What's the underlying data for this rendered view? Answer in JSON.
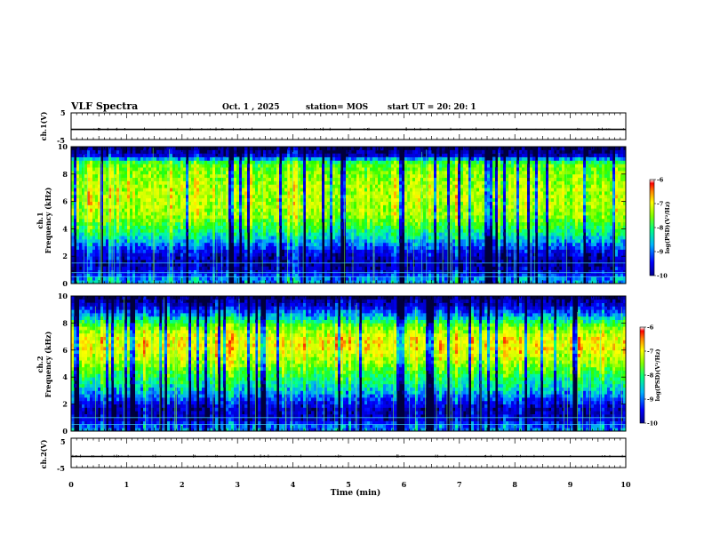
{
  "header": {
    "title": "VLF Spectra",
    "date": "Oct. 1 , 2025",
    "station": "station= MOS",
    "start_ut": "start  UT  =   20: 20: 1"
  },
  "chart_data": [
    {
      "type": "line",
      "name": "ch1-waveform",
      "ylabel": "ch.1(V)",
      "ylim": [
        -5,
        5
      ],
      "y_ticks": [
        "5",
        "-5"
      ],
      "baseline_value": -1.2,
      "xlim": [
        0,
        10
      ]
    },
    {
      "type": "heatmap",
      "name": "ch1-spectrogram",
      "ylabel_lines": [
        "ch.1",
        "Frequency (kHz)"
      ],
      "ylim": [
        0,
        10
      ],
      "y_ticks": [
        "0",
        "2",
        "4",
        "6",
        "8",
        "10"
      ],
      "xlim": [
        0,
        10
      ],
      "colorbar": {
        "label": "log(PSD)(V²/Hz)",
        "range": [
          -10,
          -6
        ],
        "ticks": [
          "-6",
          "-7",
          "-8",
          "-9",
          "-10"
        ]
      },
      "profile": [
        {
          "f": 0.3,
          "v": -8.6
        },
        {
          "f": 0.9,
          "v": -9.4
        },
        {
          "f": 1.6,
          "v": -9.6
        },
        {
          "f": 2.4,
          "v": -9.2
        },
        {
          "f": 3.2,
          "v": -8.5
        },
        {
          "f": 4.0,
          "v": -7.9
        },
        {
          "f": 5.0,
          "v": -7.3
        },
        {
          "f": 6.0,
          "v": -7.2
        },
        {
          "f": 7.0,
          "v": -7.2
        },
        {
          "f": 8.0,
          "v": -7.4
        },
        {
          "f": 8.8,
          "v": -7.6
        },
        {
          "f": 9.4,
          "v": -9.5
        },
        {
          "f": 10.0,
          "v": -10.0
        }
      ],
      "lines_khz": [
        0.5,
        0.8,
        1.5
      ]
    },
    {
      "type": "heatmap",
      "name": "ch2-spectrogram",
      "ylabel_lines": [
        "ch.2",
        "Frequency (kHz)"
      ],
      "ylim": [
        0,
        10
      ],
      "y_ticks": [
        "0",
        "2",
        "4",
        "6",
        "8",
        "10"
      ],
      "xlim": [
        0,
        10
      ],
      "colorbar": {
        "label": "log(PSD)(V²/Hz)",
        "range": [
          -10,
          -6
        ],
        "ticks": [
          "-6",
          "-7",
          "-8",
          "-9",
          "-10"
        ]
      },
      "profile": [
        {
          "f": 0.3,
          "v": -8.8
        },
        {
          "f": 0.9,
          "v": -9.5
        },
        {
          "f": 1.6,
          "v": -9.6
        },
        {
          "f": 2.4,
          "v": -9.0
        },
        {
          "f": 3.2,
          "v": -8.4
        },
        {
          "f": 4.2,
          "v": -7.9
        },
        {
          "f": 5.2,
          "v": -7.3
        },
        {
          "f": 6.2,
          "v": -6.9
        },
        {
          "f": 7.0,
          "v": -7.0
        },
        {
          "f": 7.8,
          "v": -7.6
        },
        {
          "f": 8.6,
          "v": -8.7
        },
        {
          "f": 9.4,
          "v": -9.5
        },
        {
          "f": 10.0,
          "v": -10.0
        }
      ],
      "lines_khz": [
        0.5,
        1.0
      ]
    },
    {
      "type": "line",
      "name": "ch2-waveform",
      "ylabel": "ch.2(V)",
      "ylim": [
        -5,
        5
      ],
      "y_ticks": [
        "5",
        "-5"
      ],
      "baseline_value": -1.2,
      "xlim": [
        0,
        10
      ]
    }
  ],
  "xaxis": {
    "label": "Time (min)",
    "xlim": [
      0,
      10
    ],
    "ticks": [
      "0",
      "1",
      "2",
      "3",
      "4",
      "5",
      "6",
      "7",
      "8",
      "9",
      "10"
    ]
  }
}
